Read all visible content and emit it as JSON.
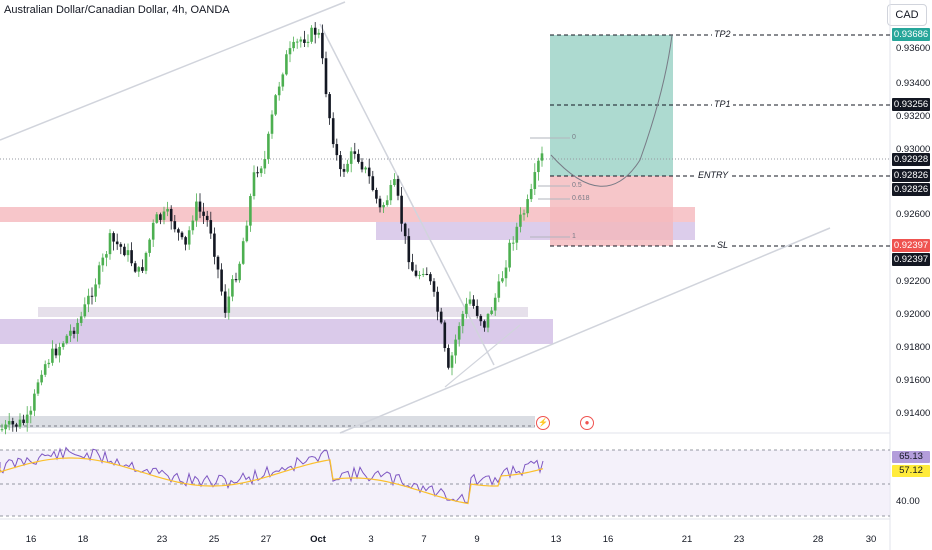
{
  "header": {
    "title": "Australian Dollar/Canadian Dollar, 4h, OANDA",
    "currency_button": "CAD"
  },
  "price_axis": {
    "ticks": [
      "0.93600",
      "0.93400",
      "0.93200",
      "0.93000",
      "0.92600",
      "0.92200",
      "0.92000",
      "0.91800",
      "0.91600",
      "0.91400"
    ],
    "tags": [
      {
        "label": "0.93686",
        "color": "#26a69a"
      },
      {
        "label": "0.93256",
        "color": "#131722"
      },
      {
        "label": "0.92928",
        "color": "#131722"
      },
      {
        "label": "0.92826",
        "color": "#131722"
      },
      {
        "label": "0.92826",
        "color": "#131722"
      },
      {
        "label": "0.92397",
        "color": "#ef5350"
      },
      {
        "label": "0.92397",
        "color": "#131722"
      }
    ]
  },
  "levels": {
    "tp2": "TP2",
    "tp1": "TP1",
    "entry": "ENTRY",
    "sl": "SL"
  },
  "fib": {
    "l0": "0",
    "l05": "0.5",
    "l0618": "0.618",
    "l1": "1"
  },
  "rsi": {
    "values": [
      "65.13",
      "57.12",
      "40.00"
    ]
  },
  "time_axis": {
    "labels": [
      "16",
      "18",
      "23",
      "25",
      "27",
      "Oct",
      "3",
      "7",
      "9",
      "13",
      "16",
      "21",
      "23",
      "28",
      "30"
    ]
  },
  "events": {
    "lightning": "⚡",
    "flag": "●"
  },
  "colors": {
    "up": "#26a69a",
    "down": "#131722",
    "buy_candle": "#4caf50",
    "tp_zone": "#9fd4c8",
    "sl_zone": "#f4b8bc",
    "purple_zone": "#d6c4e8",
    "red_zone": "#f4b3b8"
  }
}
